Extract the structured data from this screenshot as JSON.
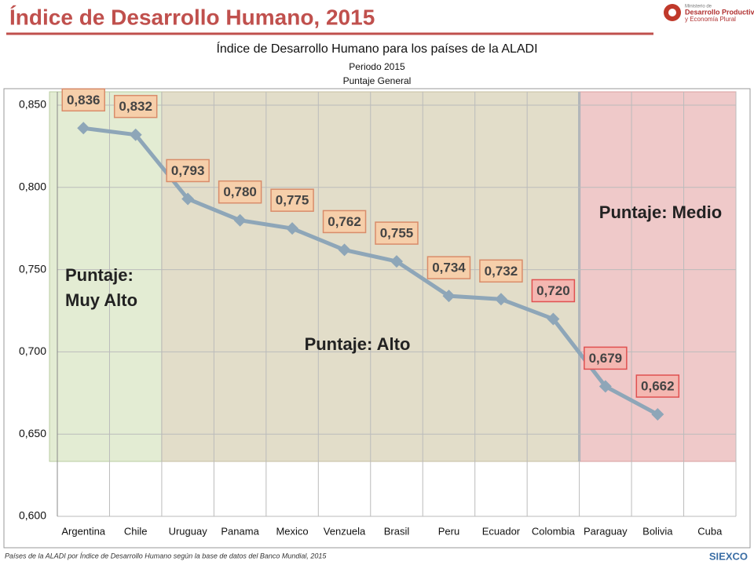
{
  "header": {
    "title": "Índice de Desarrollo Humano, 2015",
    "logo": [
      "Ministerio de",
      "Desarrollo Productivo",
      "y Economía Plural"
    ],
    "footer_logo": "SIEXCO"
  },
  "footer": "Países de la ALADI por Índice de Desarrollo Humano según la base de datos del Banco Mundial, 2015",
  "chart_data": {
    "type": "line",
    "title": "Índice de Desarrollo Humano para los países de la ALADI",
    "subtitle": [
      "Periodo 2015",
      "Puntaje General"
    ],
    "categories": [
      "Argentina",
      "Chile",
      "Uruguay",
      "Panama",
      "Mexico",
      "Venzuela",
      "Brasil",
      "Peru",
      "Ecuador",
      "Colombia",
      "Paraguay",
      "Bolivia",
      "Cuba"
    ],
    "values": [
      0.836,
      0.832,
      0.793,
      0.78,
      0.775,
      0.762,
      0.755,
      0.734,
      0.732,
      0.72,
      0.679,
      0.662,
      null
    ],
    "value_labels": [
      "0,836",
      "0,832",
      "0,793",
      "0,780",
      "0,775",
      "0,762",
      "0,755",
      "0,734",
      "0,732",
      "0,720",
      "0,679",
      "0,662",
      null
    ],
    "color": "#8ea6b8",
    "ylim": [
      0.6,
      0.86
    ],
    "yticks": [
      {
        "value": 0.6,
        "label": "0,600"
      },
      {
        "value": 0.65,
        "label": "0,650"
      },
      {
        "value": 0.7,
        "label": "0,700"
      },
      {
        "value": 0.75,
        "label": "0,750"
      },
      {
        "value": 0.8,
        "label": "0,800"
      },
      {
        "value": 0.85,
        "label": "0,850"
      }
    ],
    "grid": true,
    "annotations": [
      "Puntaje:",
      "Muy Alto",
      "Puntaje: Alto",
      "Puntaje: Medio"
    ]
  }
}
